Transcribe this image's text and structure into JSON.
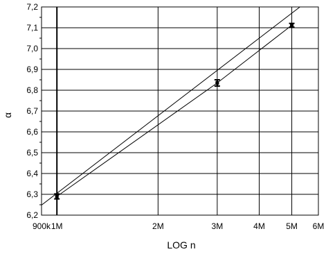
{
  "chart_data": {
    "type": "line",
    "x_scale": "log",
    "xlabel": "LOG n",
    "ylabel": "α",
    "xlim": [
      900000,
      6000000
    ],
    "ylim": [
      6.2,
      7.2
    ],
    "x_ticks": [
      {
        "value": 900000,
        "label": "900k"
      },
      {
        "value": 1000000,
        "label": "1M"
      },
      {
        "value": 2000000,
        "label": "2M"
      },
      {
        "value": 3000000,
        "label": "3M"
      },
      {
        "value": 4000000,
        "label": "4M"
      },
      {
        "value": 5000000,
        "label": "5M"
      },
      {
        "value": 6000000,
        "label": "6M"
      }
    ],
    "y_ticks": [
      {
        "value": 6.2,
        "label": "6,2"
      },
      {
        "value": 6.3,
        "label": "6,3"
      },
      {
        "value": 6.4,
        "label": "6,4"
      },
      {
        "value": 6.5,
        "label": "6,5"
      },
      {
        "value": 6.6,
        "label": "6,6"
      },
      {
        "value": 6.7,
        "label": "6,7"
      },
      {
        "value": 6.8,
        "label": "6,8"
      },
      {
        "value": 6.9,
        "label": "6,9"
      },
      {
        "value": 7.0,
        "label": "7,0"
      },
      {
        "value": 7.1,
        "label": "7,1"
      },
      {
        "value": 7.2,
        "label": "7,2"
      }
    ],
    "grid": true,
    "points": [
      {
        "x": 1000000,
        "y": 6.29,
        "err": 0.012
      },
      {
        "x": 3000000,
        "y": 6.835,
        "err": 0.015
      },
      {
        "x": 5000000,
        "y": 7.112,
        "err": 0.009
      }
    ],
    "fit_lines": [
      {
        "x": [
          870000,
          6000000
        ],
        "y": [
          6.23,
          7.268
        ]
      },
      {
        "x": [
          1000000,
          3000000,
          5000000
        ],
        "y": [
          6.29,
          6.835,
          7.112
        ]
      }
    ]
  }
}
